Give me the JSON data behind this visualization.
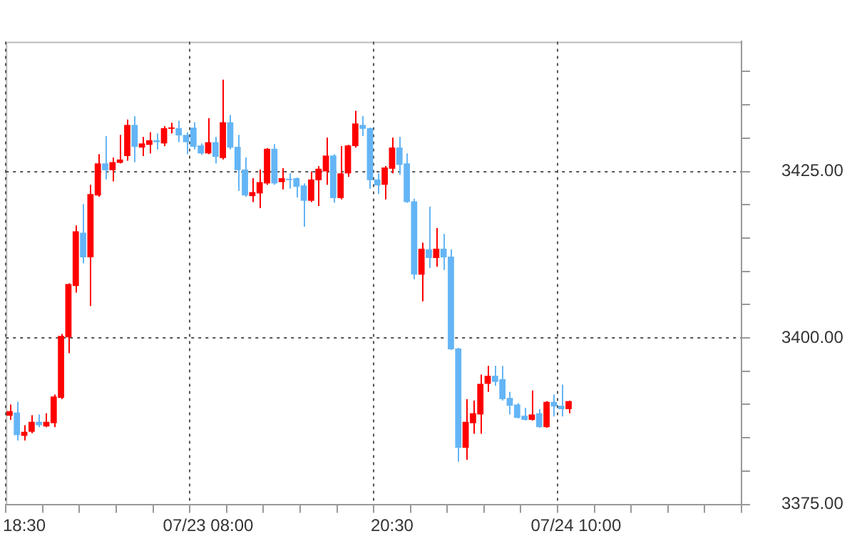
{
  "chart_data": {
    "type": "candlestick",
    "categories": [
      null,
      null,
      "18:30",
      null,
      null,
      null,
      null,
      null,
      null,
      null,
      null,
      null,
      null,
      null,
      null,
      null,
      null,
      null,
      null,
      null,
      null,
      null,
      null,
      null,
      null,
      null,
      null,
      "07/23 08:00",
      null,
      null,
      null,
      null,
      null,
      null,
      null,
      null,
      null,
      null,
      null,
      null,
      null,
      null,
      null,
      null,
      null,
      null,
      null,
      null,
      null,
      null,
      null,
      null,
      "20:30",
      null,
      null,
      null,
      null,
      null,
      null,
      null,
      null,
      null,
      null,
      null,
      null,
      null,
      null,
      null,
      null,
      null,
      null,
      null,
      null,
      null,
      null,
      null,
      null,
      "07/24 10:00",
      null,
      null,
      null,
      null,
      null,
      null,
      null,
      null,
      null,
      null,
      null,
      null,
      null,
      null,
      null,
      null,
      null,
      null,
      null,
      null,
      null,
      null
    ],
    "ohlc": [
      [
        3388.3,
        3390.0,
        3387.7,
        3389.0
      ],
      [
        3388.8,
        3390.4,
        3384.6,
        3385.4
      ],
      [
        3385.3,
        3386.9,
        3384.6,
        3385.9
      ],
      [
        3385.9,
        3388.4,
        3385.7,
        3387.4
      ],
      [
        3387.4,
        3388.5,
        3386.6,
        3386.9
      ],
      [
        3386.7,
        3388.7,
        3386.6,
        3387.4
      ],
      [
        3387.2,
        3391.5,
        3386.6,
        3391.2
      ],
      [
        3391.0,
        3400.6,
        3390.8,
        3400.3
      ],
      [
        3400.1,
        3408.2,
        3397.7,
        3408.1
      ],
      [
        3407.8,
        3416.9,
        3406.8,
        3416.0
      ],
      [
        3415.8,
        3420.1,
        3411.2,
        3412.1
      ],
      [
        3412.1,
        3423.0,
        3404.8,
        3421.6
      ],
      [
        3421.4,
        3427.6,
        3421.2,
        3426.2
      ],
      [
        3426.2,
        3430.3,
        3423.8,
        3425.2
      ],
      [
        3425.2,
        3427.1,
        3423.5,
        3426.4
      ],
      [
        3426.3,
        3430.5,
        3426.2,
        3426.8
      ],
      [
        3427.3,
        3432.8,
        3426.6,
        3432.0
      ],
      [
        3432.0,
        3433.3,
        3426.4,
        3428.7
      ],
      [
        3428.6,
        3430.2,
        3427.3,
        3429.2
      ],
      [
        3429.0,
        3430.9,
        3427.7,
        3429.7
      ],
      [
        3429.7,
        3430.7,
        3428.3,
        3429.4
      ],
      [
        3429.2,
        3431.8,
        3428.8,
        3431.5
      ],
      [
        3431.4,
        3432.3,
        3430.7,
        3431.6
      ],
      [
        3431.5,
        3432.6,
        3429.4,
        3430.4
      ],
      [
        3430.5,
        3430.9,
        3427.6,
        3429.4
      ],
      [
        3431.6,
        3432.4,
        3428.3,
        3428.7
      ],
      [
        3428.9,
        3429.2,
        3427.5,
        3427.7
      ],
      [
        3427.7,
        3433.0,
        3427.6,
        3429.4
      ],
      [
        3429.4,
        3430.2,
        3426.2,
        3427.2
      ],
      [
        3427.0,
        3438.8,
        3426.8,
        3432.4
      ],
      [
        3432.4,
        3433.5,
        3428.3,
        3428.6
      ],
      [
        3428.7,
        3430.5,
        3422.1,
        3425.2
      ],
      [
        3425.3,
        3427.1,
        3421.2,
        3421.4
      ],
      [
        3421.3,
        3424.0,
        3420.4,
        3421.9
      ],
      [
        3421.7,
        3425.3,
        3419.5,
        3423.4
      ],
      [
        3423.2,
        3428.5,
        3423.0,
        3428.4
      ],
      [
        3428.4,
        3429.1,
        3423.0,
        3423.2
      ],
      [
        3423.4,
        3425.5,
        3422.3,
        3424.0
      ],
      [
        3423.9,
        3424.7,
        3422.4,
        3423.7
      ],
      [
        3424.0,
        3424.1,
        3421.1,
        3422.7
      ],
      [
        3422.9,
        3423.2,
        3416.7,
        3420.6
      ],
      [
        3420.6,
        3425.0,
        3420.4,
        3423.8
      ],
      [
        3423.7,
        3425.8,
        3419.8,
        3425.4
      ],
      [
        3425.0,
        3430.1,
        3423.0,
        3427.4
      ],
      [
        3427.4,
        3427.6,
        3420.3,
        3421.0
      ],
      [
        3421.0,
        3428.8,
        3420.8,
        3424.7
      ],
      [
        3424.7,
        3429.0,
        3424.2,
        3428.9
      ],
      [
        3428.8,
        3434.1,
        3428.6,
        3432.2
      ],
      [
        3432.0,
        3433.3,
        3430.3,
        3431.4
      ],
      [
        3431.5,
        3431.6,
        3422.4,
        3423.7
      ],
      [
        3423.8,
        3424.7,
        3421.6,
        3422.9
      ],
      [
        3423.0,
        3425.8,
        3420.8,
        3425.6
      ],
      [
        3425.4,
        3430.1,
        3424.7,
        3428.6
      ],
      [
        3428.6,
        3430.2,
        3424.5,
        3426.0
      ],
      [
        3426.2,
        3427.7,
        3420.3,
        3420.4
      ],
      [
        3420.5,
        3420.9,
        3408.8,
        3409.5
      ],
      [
        3409.5,
        3414.3,
        3405.5,
        3413.4
      ],
      [
        3413.3,
        3419.7,
        3410.5,
        3412.0
      ],
      [
        3412.0,
        3416.5,
        3410.7,
        3413.4
      ],
      [
        3413.4,
        3415.6,
        3410.2,
        3412.1
      ],
      [
        3412.2,
        3413.3,
        3398.2,
        3398.3
      ],
      [
        3398.4,
        3398.5,
        3381.4,
        3383.5
      ],
      [
        3383.5,
        3390.8,
        3381.7,
        3387.4
      ],
      [
        3387.2,
        3390.6,
        3385.6,
        3388.7
      ],
      [
        3388.5,
        3394.5,
        3385.6,
        3393.1
      ],
      [
        3393.1,
        3395.8,
        3391.9,
        3394.3
      ],
      [
        3394.3,
        3395.8,
        3392.8,
        3393.4
      ],
      [
        3393.8,
        3395.8,
        3390.6,
        3390.8
      ],
      [
        3391.0,
        3391.9,
        3388.5,
        3389.8
      ],
      [
        3390.0,
        3390.2,
        3387.9,
        3388.0
      ],
      [
        3388.3,
        3389.5,
        3387.6,
        3387.7
      ],
      [
        3387.7,
        3392.1,
        3387.6,
        3388.5
      ],
      [
        3388.7,
        3389.3,
        3386.5,
        3386.6
      ],
      [
        3386.6,
        3390.5,
        3386.5,
        3390.4
      ],
      [
        3390.4,
        3391.5,
        3388.2,
        3389.7
      ],
      [
        3389.8,
        3393.0,
        3388.2,
        3389.3
      ],
      [
        3389.3,
        3390.6,
        3388.7,
        3390.5
      ],
      null,
      null,
      null,
      null,
      null,
      null,
      null,
      null,
      null,
      null,
      null,
      null,
      null,
      null,
      null,
      null,
      null,
      null,
      null,
      null,
      null,
      null,
      null
    ],
    "colors": [
      "#ff0000",
      "#64b5f6",
      "#ff0000",
      "#ff0000",
      "#64b5f6",
      "#ff0000",
      "#ff0000",
      "#ff0000",
      "#ff0000",
      "#ff0000",
      "#64b5f6",
      "#ff0000",
      "#ff0000",
      "#64b5f6",
      "#ff0000",
      "#ff0000",
      "#ff0000",
      "#64b5f6",
      "#ff0000",
      "#ff0000",
      "#64b5f6",
      "#ff0000",
      "#ff0000",
      "#64b5f6",
      "#64b5f6",
      "#64b5f6",
      "#64b5f6",
      "#ff0000",
      "#64b5f6",
      "#ff0000",
      "#64b5f6",
      "#64b5f6",
      "#64b5f6",
      "#ff0000",
      "#ff0000",
      "#ff0000",
      "#64b5f6",
      "#ff0000",
      "#64b5f6",
      "#64b5f6",
      "#64b5f6",
      "#ff0000",
      "#ff0000",
      "#ff0000",
      "#64b5f6",
      "#ff0000",
      "#ff0000",
      "#ff0000",
      "#64b5f6",
      "#64b5f6",
      "#64b5f6",
      "#ff0000",
      "#ff0000",
      "#64b5f6",
      "#64b5f6",
      "#64b5f6",
      "#ff0000",
      "#64b5f6",
      "#ff0000",
      "#64b5f6",
      "#64b5f6",
      "#64b5f6",
      "#ff0000",
      "#ff0000",
      "#ff0000",
      "#ff0000",
      "#64b5f6",
      "#64b5f6",
      "#64b5f6",
      "#64b5f6",
      "#64b5f6",
      "#ff0000",
      "#64b5f6",
      "#ff0000",
      "#64b5f6",
      "#64b5f6",
      "#ff0000",
      null,
      null,
      null,
      null,
      null,
      null,
      null,
      null,
      null,
      null,
      null,
      null,
      null,
      null,
      null,
      null,
      null,
      null,
      null,
      null,
      null,
      null,
      null
    ],
    "ylim": [
      3375,
      3444.5
    ],
    "yticks": [
      {
        "value": 3375,
        "label": "3375.00"
      },
      {
        "value": 3380,
        "label": null
      },
      {
        "value": 3385,
        "label": null
      },
      {
        "value": 3390,
        "label": null
      },
      {
        "value": 3395,
        "label": null
      },
      {
        "value": 3400,
        "label": "3400.00"
      },
      {
        "value": 3405,
        "label": null
      },
      {
        "value": 3410,
        "label": null
      },
      {
        "value": 3415,
        "label": null
      },
      {
        "value": 3420,
        "label": null
      },
      {
        "value": 3425,
        "label": "3425.00"
      },
      {
        "value": 3430,
        "label": null
      },
      {
        "value": 3435,
        "label": null
      },
      {
        "value": 3440,
        "label": null
      }
    ],
    "grid": true
  }
}
